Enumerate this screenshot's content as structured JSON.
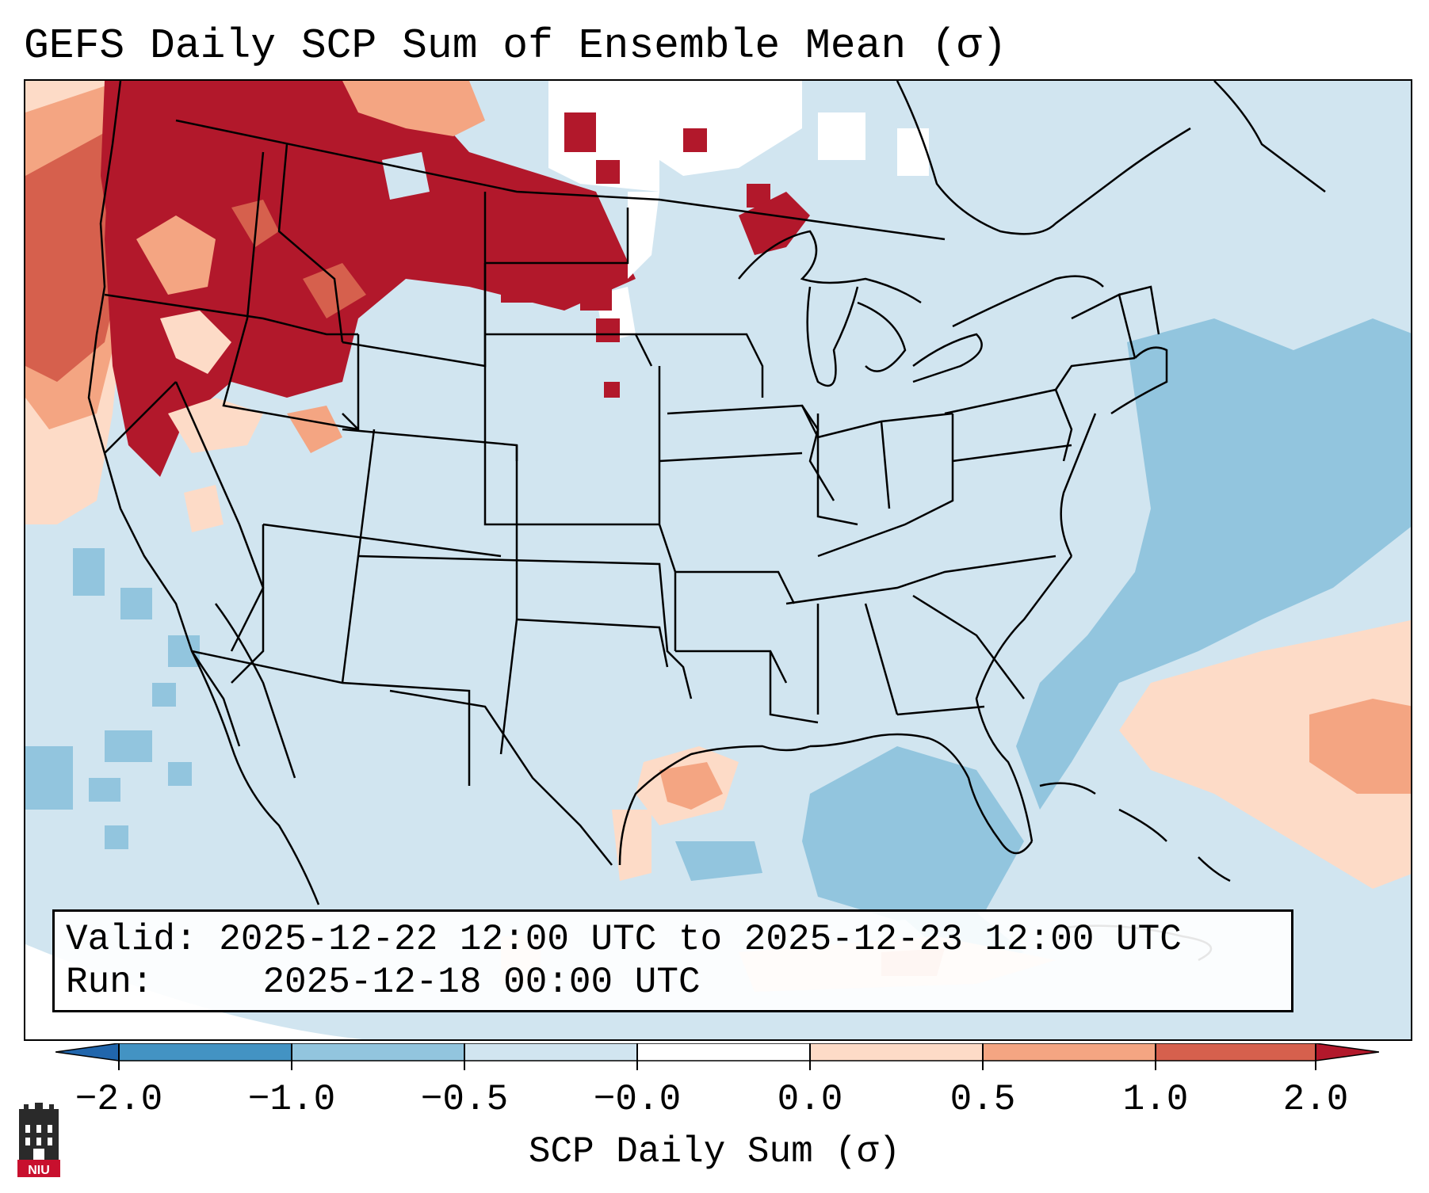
{
  "title": "GEFS Daily SCP Sum of Ensemble Mean (σ)",
  "info": {
    "valid_label": "Valid:",
    "valid_value": "2025-12-22 12:00 UTC to 2025-12-23 12:00 UTC",
    "run_label": "Run:",
    "run_value": "2025-12-18 00:00 UTC"
  },
  "colorbar": {
    "label": "SCP Daily Sum (σ)",
    "ticks": [
      "−2.0",
      "−1.0",
      "−0.5",
      "−0.0",
      "0.0",
      "0.5",
      "1.0",
      "2.0"
    ],
    "colors": [
      "#4393c3",
      "#92c5de",
      "#d1e5f0",
      "#ffffff",
      "#fddbc7",
      "#f4a582",
      "#d6604d",
      "#b2182b"
    ],
    "under_color": "#2166ac",
    "over_color": "#b2182b"
  },
  "map": {
    "region": "Contiguous United States",
    "background_color": "#d1e5f0",
    "high_anomaly_regions": [
      "Pacific Northwest",
      "Northern Rockies",
      "Upper Midwest"
    ],
    "moderate_anomaly_regions": [
      "Texas Gulf Coast",
      "Western Atlantic"
    ],
    "negative_anomaly_regions": [
      "Gulf of Mexico",
      "Western Atlantic offshore",
      "Eastern Pacific"
    ]
  },
  "logo": {
    "text": "NIU"
  }
}
